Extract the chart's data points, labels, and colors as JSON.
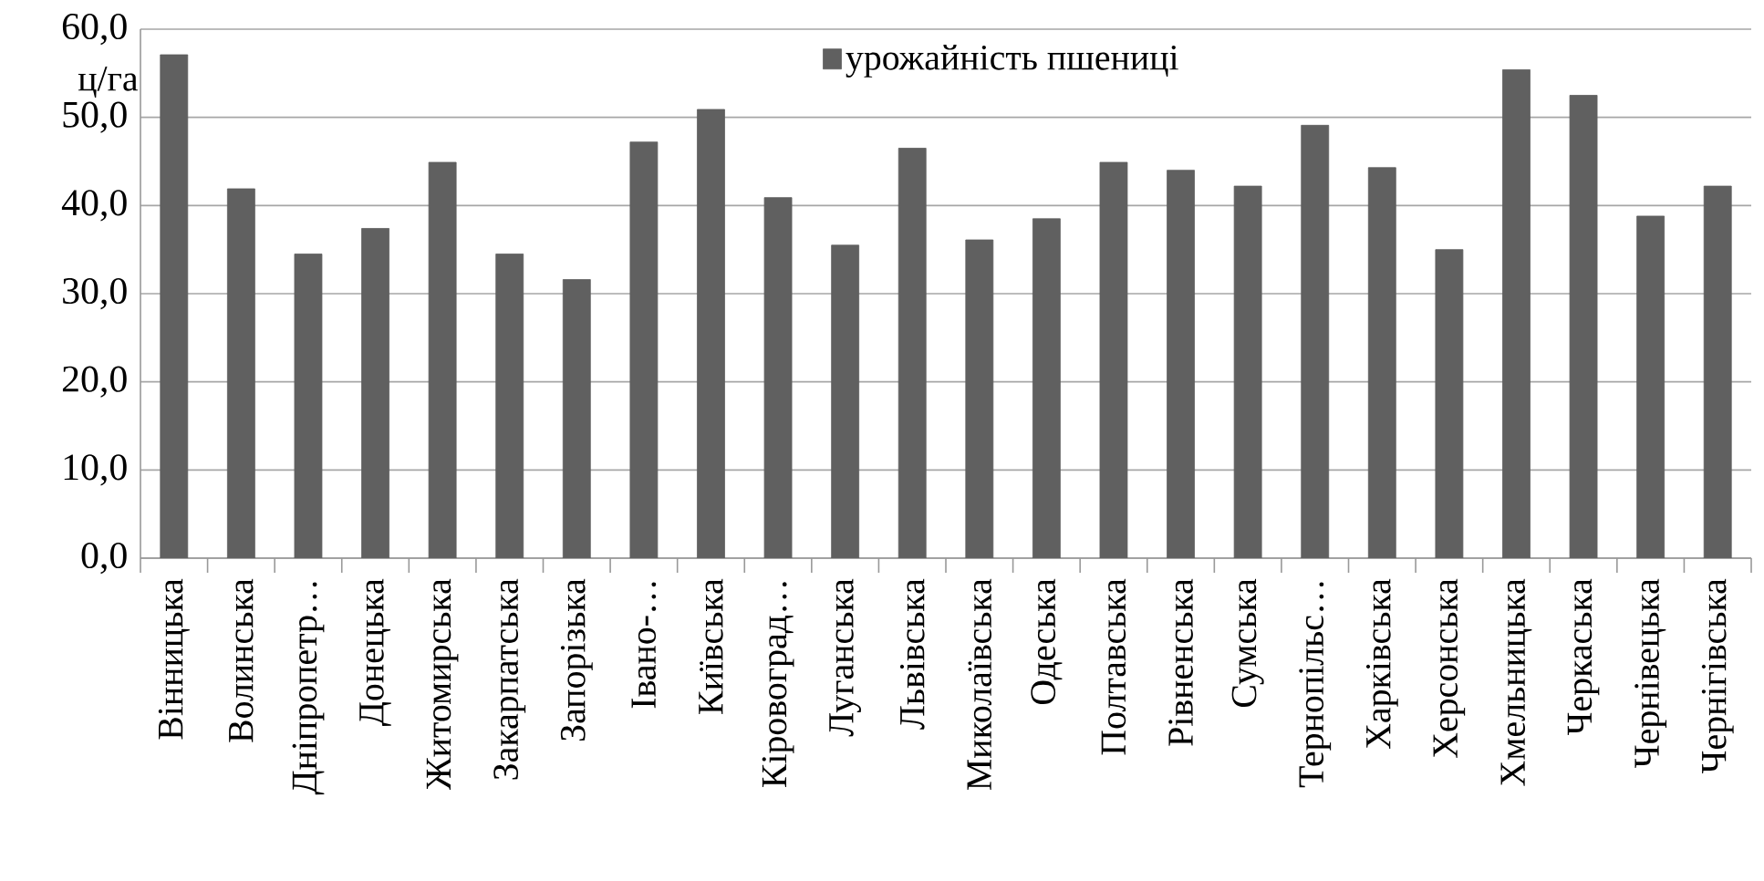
{
  "chart_data": {
    "type": "bar",
    "ylabel": "ц/га",
    "categories": [
      "Вінницька",
      "Волинська",
      "Дніпропетр…",
      "Донецька",
      "Житомирська",
      "Закарпатська",
      "Запорізька",
      "Івано-…",
      "Київська",
      "Кіровоград…",
      "Луганська",
      "Львівська",
      "Миколаївська",
      "Одеська",
      "Полтавська",
      "Рівненська",
      "Сумська",
      "Тернопільс…",
      "Харківська",
      "Херсонська",
      "Хмельницька",
      "Черкаська",
      "Чернівецька",
      "Чернігівська"
    ],
    "series": [
      {
        "name": "урожайність пшениці",
        "color": "#606060",
        "values": [
          57.1,
          41.9,
          34.5,
          37.4,
          44.9,
          34.5,
          31.6,
          47.2,
          50.9,
          40.9,
          35.5,
          46.5,
          36.1,
          38.5,
          44.9,
          44.0,
          42.2,
          49.1,
          44.3,
          35.0,
          55.4,
          52.5,
          38.8,
          42.2
        ]
      }
    ],
    "ylim": [
      0,
      60
    ],
    "yticks": [
      {
        "value": 0,
        "label": "0,0"
      },
      {
        "value": 10,
        "label": "10,0"
      },
      {
        "value": 20,
        "label": "20,0"
      },
      {
        "value": 30,
        "label": "30,0"
      },
      {
        "value": 40,
        "label": "40,0"
      },
      {
        "value": 50,
        "label": "50,0"
      },
      {
        "value": 60,
        "label": "60,0"
      }
    ],
    "grid": "y",
    "legend": "top"
  }
}
